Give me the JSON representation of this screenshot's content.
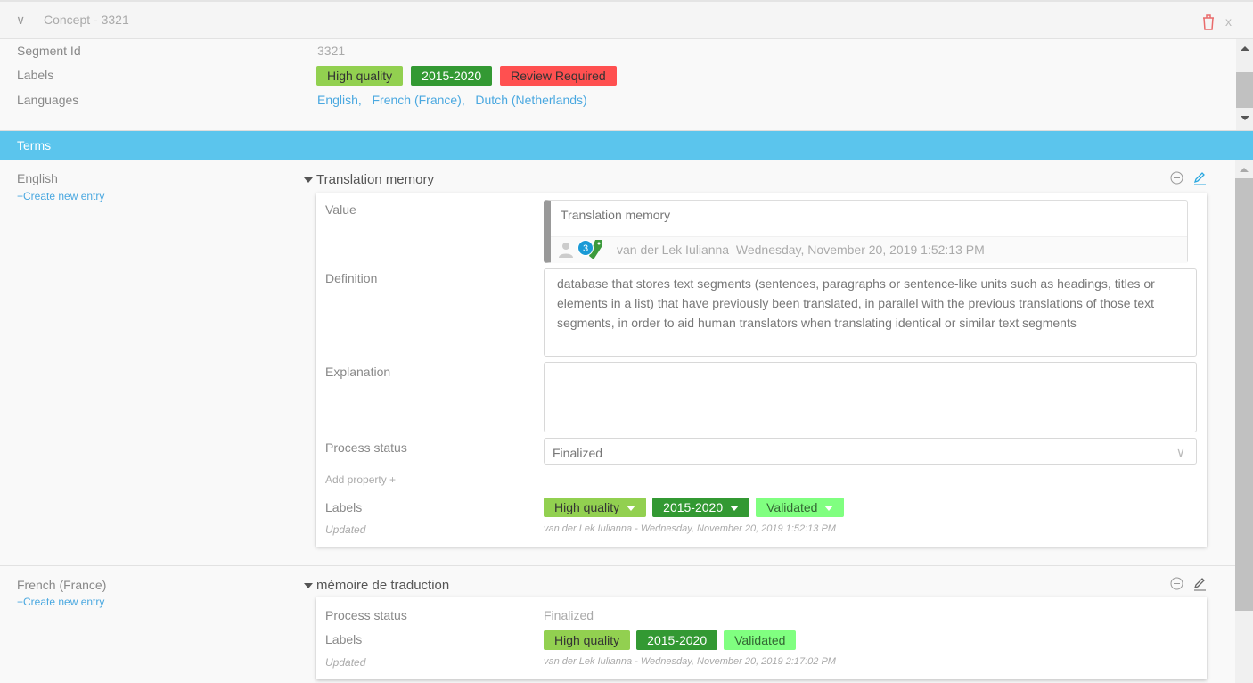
{
  "header": {
    "title": "Concept - 3321",
    "icons": [
      "chevron-down-icon",
      "trash-icon",
      "close-icon"
    ]
  },
  "details": {
    "segment_id_label": "Segment Id",
    "segment_id": "3321",
    "labels_label": "Labels",
    "labels": [
      {
        "text": "High quality",
        "color": "#92d050"
      },
      {
        "text": "2015-2020",
        "color": "#339933"
      },
      {
        "text": "Review Required",
        "color": "#ff5050"
      }
    ],
    "languages_label": "Languages",
    "languages": [
      "English,",
      "French (France),",
      "Dutch (Netherlands)"
    ]
  },
  "terms_bar": {
    "title": "Terms",
    "color": "#5bc5ed"
  },
  "sections": [
    {
      "language": "English",
      "create_label": "+Create new entry",
      "term": "Translation memory",
      "value_label": "Value",
      "value": "Translation memory",
      "badge_count": "3",
      "value_author": "van der Lek Iulianna",
      "value_date": "Wednesday, November 20, 2019 1:52:13 PM",
      "definition_label": "Definition",
      "definition": "database that stores text segments (sentences, paragraphs or sentence-like units such as headings, titles or elements in a list) that have previously been translated, in parallel with the previous translations of those text segments, in order to aid human translators when translating identical or similar text segments",
      "explanation_label": "Explanation",
      "explanation": "",
      "process_status_label": "Process status",
      "process_status": "Finalized",
      "add_property_label": "Add property +",
      "labels_label": "Labels",
      "labels": [
        "High quality",
        "2015-2020",
        "Validated"
      ],
      "updated_label": "Updated",
      "updated": "van der Lek Iulianna - Wednesday, November 20, 2019 1:52:13 PM"
    },
    {
      "language": "French (France)",
      "create_label": "+Create new entry",
      "term": "mémoire de traduction",
      "process_status_label": "Process status",
      "process_status": "Finalized",
      "labels_label": "Labels",
      "labels": [
        "High quality",
        "2015-2020",
        "Validated"
      ],
      "updated_label": "Updated",
      "updated": "van der Lek Iulianna - Wednesday, November 20, 2019 2:17:02 PM"
    }
  ]
}
